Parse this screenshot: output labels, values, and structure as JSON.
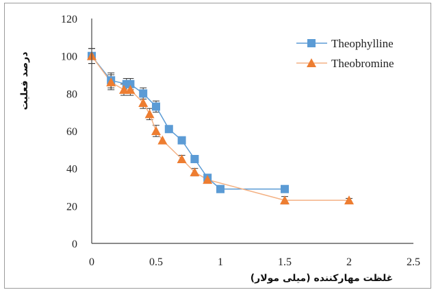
{
  "chart_data": {
    "type": "line",
    "title": "",
    "xlabel": "غلظت مهارکننده (میلی مولار)",
    "ylabel": "درصد فعلیت",
    "xlim": [
      0,
      2.5
    ],
    "ylim": [
      0,
      120
    ],
    "x_ticks": [
      "0",
      "0.5",
      "1",
      "1.5",
      "2",
      "2.5"
    ],
    "y_ticks": [
      "0",
      "20",
      "40",
      "60",
      "80",
      "100",
      "120"
    ],
    "grid": false,
    "legend_position": "top-right",
    "series": [
      {
        "name": "Theophylline",
        "marker": "square",
        "color": "#5b9bd5",
        "line_color": "#5b9bd5",
        "points": [
          {
            "x": 0,
            "y": 100,
            "err": 4
          },
          {
            "x": 0.15,
            "y": 87,
            "err": 4
          },
          {
            "x": 0.27,
            "y": 85,
            "err": 3
          },
          {
            "x": 0.3,
            "y": 85,
            "err": 3
          },
          {
            "x": 0.4,
            "y": 80,
            "err": 3
          },
          {
            "x": 0.5,
            "y": 73,
            "err": 3
          },
          {
            "x": 0.6,
            "y": 61,
            "err": 0
          },
          {
            "x": 0.7,
            "y": 55,
            "err": 0
          },
          {
            "x": 0.8,
            "y": 45,
            "err": 0
          },
          {
            "x": 0.9,
            "y": 35,
            "err": 0
          },
          {
            "x": 1.0,
            "y": 29,
            "err": 0
          },
          {
            "x": 1.5,
            "y": 29,
            "err": 0
          }
        ]
      },
      {
        "name": "Theobromine",
        "marker": "triangle",
        "color": "#ed7d31",
        "line_color": "#f4b183",
        "points": [
          {
            "x": 0,
            "y": 100,
            "err": 4
          },
          {
            "x": 0.15,
            "y": 86,
            "err": 4
          },
          {
            "x": 0.25,
            "y": 82,
            "err": 3
          },
          {
            "x": 0.3,
            "y": 82,
            "err": 3
          },
          {
            "x": 0.4,
            "y": 75,
            "err": 3
          },
          {
            "x": 0.45,
            "y": 69,
            "err": 3
          },
          {
            "x": 0.5,
            "y": 60,
            "err": 3
          },
          {
            "x": 0.55,
            "y": 55,
            "err": 0
          },
          {
            "x": 0.7,
            "y": 45,
            "err": 2
          },
          {
            "x": 0.8,
            "y": 38,
            "err": 2
          },
          {
            "x": 0.9,
            "y": 34,
            "err": 2
          },
          {
            "x": 1.5,
            "y": 23,
            "err": 2
          },
          {
            "x": 2.0,
            "y": 23,
            "err": 1
          }
        ]
      }
    ]
  }
}
